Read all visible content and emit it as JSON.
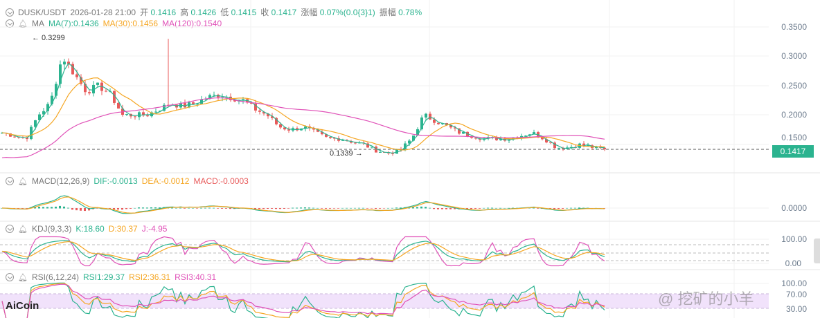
{
  "header": {
    "pair": "DUSK/USDT",
    "datetime": "2026-01-28 21:00",
    "open_label": "开",
    "open": "0.1416",
    "high_label": "高",
    "high": "0.1426",
    "low_label": "低",
    "low": "0.1415",
    "close_label": "收",
    "close": "0.1417",
    "change_label": "涨幅",
    "change": "0.07%(0.0{3}1)",
    "amp_label": "振幅",
    "amp": "0.78%"
  },
  "ma": {
    "label": "MA",
    "ma7": "MA(7):0.1436",
    "ma30": "MA(30):0.1456",
    "ma120": "MA(120):0.1540"
  },
  "macd": {
    "label": "MACD(12,26,9)",
    "dif": "DIF:-0.0013",
    "dea": "DEA:-0.0012",
    "macd": "MACD:-0.0003"
  },
  "kdj": {
    "label": "KDJ(9,3,3)",
    "k": "K:18.60",
    "d": "D:30.37",
    "j": "J:-4.95"
  },
  "rsi": {
    "label": "RSI(6,12,24)",
    "rsi1": "RSI1:29.37",
    "rsi2": "RSI2:36.31",
    "rsi3": "RSI3:40.31"
  },
  "axis": {
    "price": [
      "0.3500",
      "0.3000",
      "0.2500",
      "0.2000",
      "0.1500"
    ],
    "macd": [
      "0.0000"
    ],
    "kdj": [
      "100.00",
      "0.00"
    ],
    "rsi": [
      "100.00",
      "70.00",
      "30.00"
    ]
  },
  "last_price": "0.1417",
  "annotations": {
    "high": "← 0.3299",
    "low": "0.1339 →"
  },
  "logo": "AiCoin",
  "watermark": "@ 挖矿的小羊",
  "colors": {
    "up": "#2bb38f",
    "down": "#e85a5a",
    "ma7": "#2bb38f",
    "ma30": "#f5a623",
    "ma120": "#e052b8"
  },
  "chart_data": {
    "type": "candlestick",
    "xlim_candles": 146,
    "close": [
      0.17,
      0.165,
      0.16,
      0.2,
      0.22,
      0.3,
      0.27,
      0.24,
      0.25,
      0.235,
      0.2,
      0.2,
      0.2,
      0.21,
      0.22,
      0.215,
      0.22,
      0.23,
      0.235,
      0.23,
      0.225,
      0.21,
      0.2,
      0.18,
      0.175,
      0.18,
      0.17,
      0.16,
      0.16,
      0.155,
      0.15,
      0.14,
      0.135,
      0.14,
      0.16,
      0.2,
      0.19,
      0.18,
      0.17,
      0.165,
      0.16,
      0.16,
      0.16,
      0.165,
      0.17,
      0.16,
      0.145,
      0.145,
      0.15,
      0.145,
      0.1417
    ],
    "high_mark": 0.3299,
    "low_mark": 0.1339,
    "ylim": [
      0.1,
      0.37
    ]
  }
}
